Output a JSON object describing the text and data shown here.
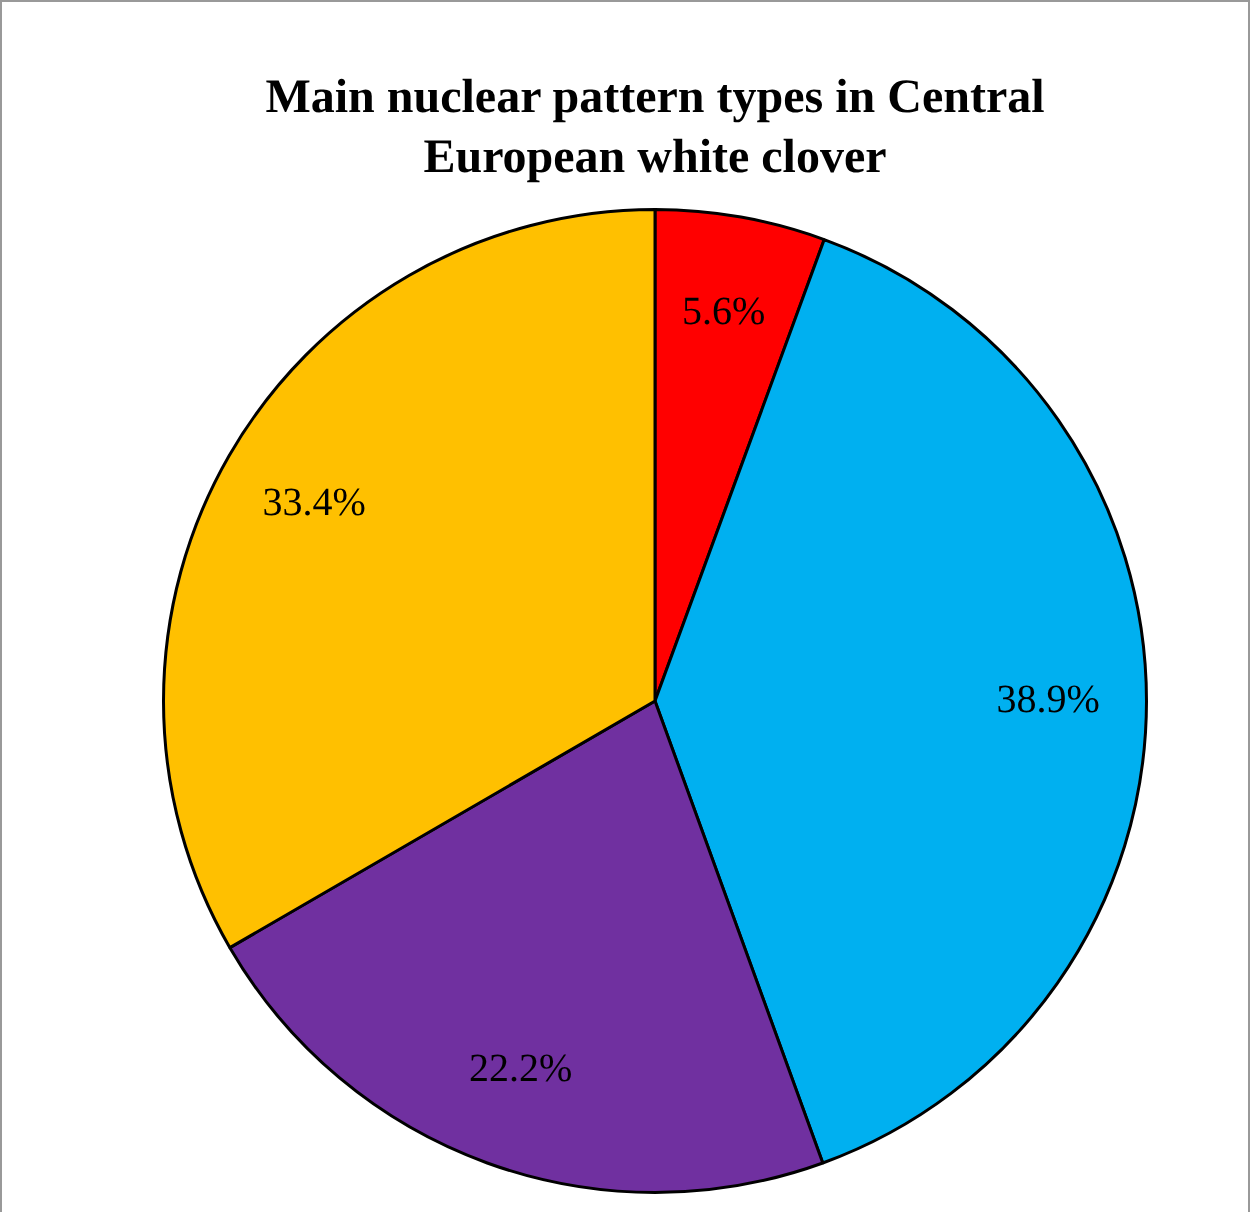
{
  "chart_data": {
    "type": "pie",
    "title": "Main nuclear pattern types in Central European white clover",
    "categories": [
      null,
      null,
      null,
      null
    ],
    "values": [
      5.6,
      38.9,
      22.2,
      33.4
    ],
    "colors": [
      "#ff0000",
      "#00b0f0",
      "#7030a0",
      "#ffc000"
    ],
    "value_labels": [
      "5.6%",
      "38.9%",
      "22.2%",
      "33.4%"
    ],
    "legend": false
  }
}
